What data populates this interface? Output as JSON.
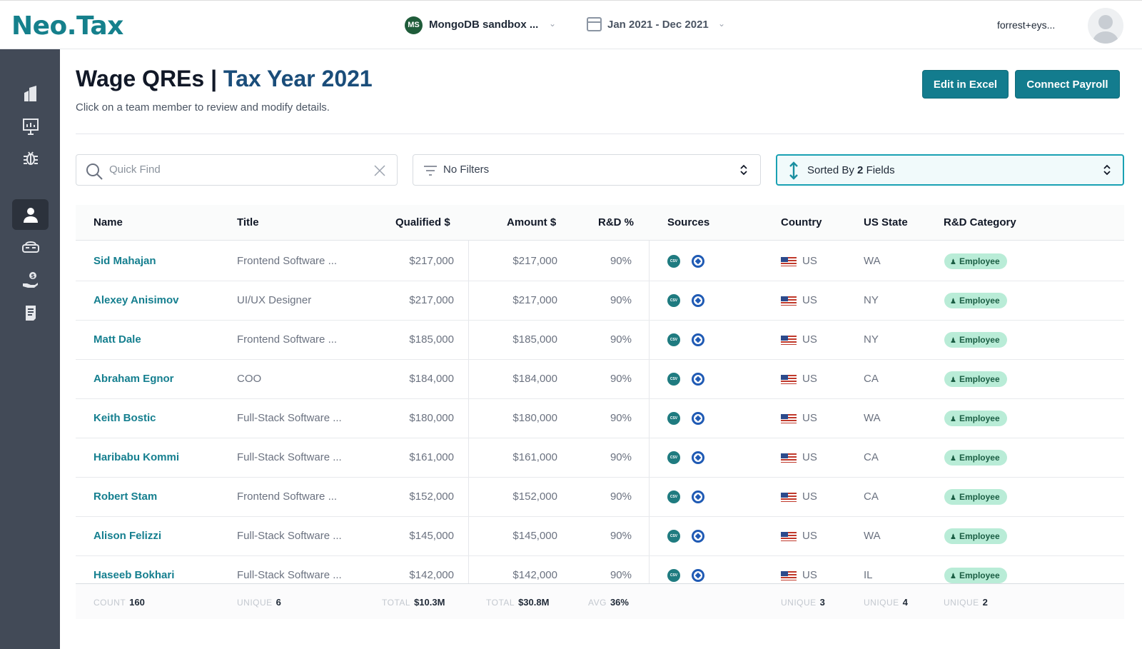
{
  "header": {
    "logo": "Neo.Tax",
    "workspace_initials": "MS",
    "workspace_name": "MongoDB sandbox ...",
    "date_range": "Jan 2021 - Dec 2021",
    "user": "forrest+eys..."
  },
  "sidebar": {
    "items": [
      {
        "icon": "building-icon"
      },
      {
        "icon": "presentation-icon"
      },
      {
        "icon": "bug-icon"
      },
      {
        "icon": "person-icon",
        "active": true
      },
      {
        "icon": "vr-headset-icon"
      },
      {
        "icon": "money-hand-icon"
      },
      {
        "icon": "document-icon"
      }
    ]
  },
  "page": {
    "title_main": "Wage QREs |",
    "title_highlight": "Tax Year 2021",
    "subtitle": "Click on a team member to review and modify details.",
    "edit_excel": "Edit in Excel",
    "connect_payroll": "Connect Payroll"
  },
  "controls": {
    "search_placeholder": "Quick Find",
    "filters": "No Filters",
    "sort_prefix": "Sorted By",
    "sort_count": "2",
    "sort_suffix": "Fields"
  },
  "table": {
    "columns": [
      "Name",
      "Title",
      "Qualified $",
      "Amount $",
      "R&D %",
      "Sources",
      "Country",
      "US State",
      "R&D Category"
    ],
    "rows": [
      {
        "name": "Sid Mahajan",
        "title": "Frontend Software ...",
        "qualified": "$217,000",
        "amount": "$217,000",
        "rd": "90%",
        "country": "US",
        "state": "WA",
        "category": "Employee"
      },
      {
        "name": "Alexey Anisimov",
        "title": "UI/UX Designer",
        "qualified": "$217,000",
        "amount": "$217,000",
        "rd": "90%",
        "country": "US",
        "state": "NY",
        "category": "Employee"
      },
      {
        "name": "Matt Dale",
        "title": "Frontend Software ...",
        "qualified": "$185,000",
        "amount": "$185,000",
        "rd": "90%",
        "country": "US",
        "state": "NY",
        "category": "Employee"
      },
      {
        "name": "Abraham Egnor",
        "title": "COO",
        "qualified": "$184,000",
        "amount": "$184,000",
        "rd": "90%",
        "country": "US",
        "state": "CA",
        "category": "Employee"
      },
      {
        "name": "Keith Bostic",
        "title": "Full-Stack Software ...",
        "qualified": "$180,000",
        "amount": "$180,000",
        "rd": "90%",
        "country": "US",
        "state": "WA",
        "category": "Employee"
      },
      {
        "name": "Haribabu Kommi",
        "title": "Full-Stack Software ...",
        "qualified": "$161,000",
        "amount": "$161,000",
        "rd": "90%",
        "country": "US",
        "state": "CA",
        "category": "Employee"
      },
      {
        "name": "Robert Stam",
        "title": "Frontend Software ...",
        "qualified": "$152,000",
        "amount": "$152,000",
        "rd": "90%",
        "country": "US",
        "state": "CA",
        "category": "Employee"
      },
      {
        "name": "Alison Felizzi",
        "title": "Full-Stack Software ...",
        "qualified": "$145,000",
        "amount": "$145,000",
        "rd": "90%",
        "country": "US",
        "state": "WA",
        "category": "Employee"
      },
      {
        "name": "Haseeb Bokhari",
        "title": "Full-Stack Software ...",
        "qualified": "$142,000",
        "amount": "$142,000",
        "rd": "90%",
        "country": "US",
        "state": "IL",
        "category": "Employee"
      }
    ],
    "footer": {
      "name": {
        "label": "COUNT",
        "value": "160"
      },
      "title": {
        "label": "UNIQUE",
        "value": "6"
      },
      "qualified": {
        "label": "TOTAL",
        "value": "$10.3M"
      },
      "amount": {
        "label": "TOTAL",
        "value": "$30.8M"
      },
      "rd": {
        "label": "AVG",
        "value": "36%"
      },
      "country": {
        "label": "UNIQUE",
        "value": "3"
      },
      "state": {
        "label": "UNIQUE",
        "value": "4"
      },
      "category": {
        "label": "UNIQUE",
        "value": "2"
      }
    }
  },
  "colors": {
    "brand": "#15808c",
    "sidebar": "#424a57",
    "button": "#137c8e",
    "link": "#157f8f",
    "chip": "#b9ecd7"
  }
}
